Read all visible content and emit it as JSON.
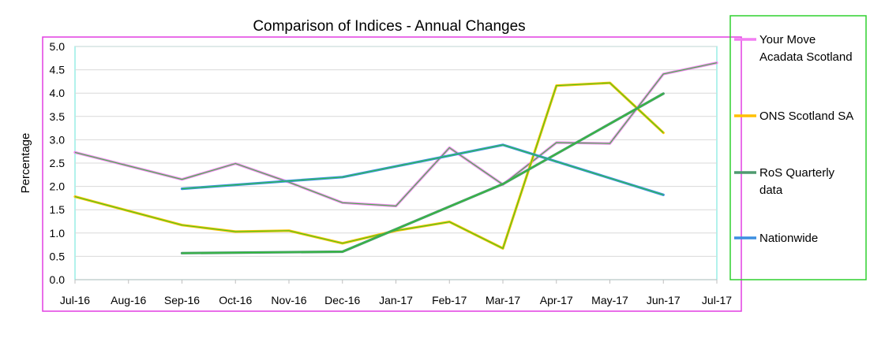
{
  "chart_data": {
    "type": "line",
    "title": "Comparison of Indices - Annual Changes",
    "xlabel": "",
    "ylabel": "Percentage",
    "categories": [
      "Jul-16",
      "Aug-16",
      "Sep-16",
      "Oct-16",
      "Nov-16",
      "Dec-16",
      "Jan-17",
      "Feb-17",
      "Mar-17",
      "Apr-17",
      "May-17",
      "Jun-17",
      "Jul-17"
    ],
    "ylim": [
      0,
      5
    ],
    "yticks": [
      "0.0",
      "0.5",
      "1.0",
      "1.5",
      "2.0",
      "2.5",
      "3.0",
      "3.5",
      "4.0",
      "4.5",
      "5.0"
    ],
    "grid": true,
    "legend_position": "right",
    "series": [
      {
        "name": "Your Move Acadata Scotland",
        "legend_lines": [
          "Your Move",
          "Acadata Scotland"
        ],
        "color": "#f27ef2",
        "values": [
          2.73,
          null,
          2.15,
          2.49,
          2.09,
          1.65,
          1.58,
          2.83,
          2.04,
          2.94,
          2.92,
          4.41,
          4.65
        ]
      },
      {
        "name": "ONS Scotland SA",
        "legend_lines": [
          "ONS Scotland SA"
        ],
        "color": "#ffc000",
        "values": [
          1.78,
          null,
          1.17,
          1.03,
          1.05,
          0.78,
          1.05,
          1.24,
          0.67,
          4.16,
          4.22,
          3.15,
          null
        ]
      },
      {
        "name": "RoS Quarterly data",
        "legend_lines": [
          "RoS Quarterly",
          "data"
        ],
        "color": "#4e9a6f",
        "values": [
          null,
          null,
          0.57,
          null,
          null,
          0.6,
          null,
          null,
          2.05,
          null,
          null,
          3.99,
          null
        ]
      },
      {
        "name": "Nationwide",
        "legend_lines": [
          "Nationwide"
        ],
        "color": "#3d8fe0",
        "values": [
          null,
          null,
          1.95,
          null,
          null,
          2.2,
          null,
          null,
          2.89,
          null,
          null,
          1.82,
          null
        ]
      }
    ]
  }
}
